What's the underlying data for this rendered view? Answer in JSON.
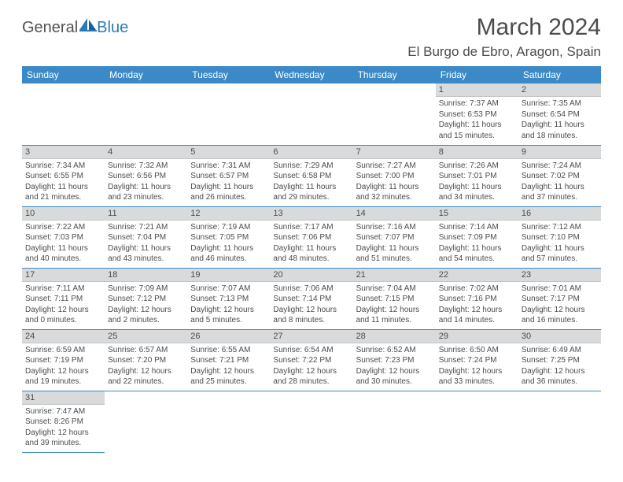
{
  "logo": {
    "text1": "General",
    "text2": "Blue"
  },
  "title": "March 2024",
  "location": "El Burgo de Ebro, Aragon, Spain",
  "header_bg": "#3b89c6",
  "day_headers": [
    "Sunday",
    "Monday",
    "Tuesday",
    "Wednesday",
    "Thursday",
    "Friday",
    "Saturday"
  ],
  "weeks": [
    [
      null,
      null,
      null,
      null,
      null,
      {
        "n": "1",
        "sunrise": "Sunrise: 7:37 AM",
        "sunset": "Sunset: 6:53 PM",
        "day1": "Daylight: 11 hours",
        "day2": "and 15 minutes."
      },
      {
        "n": "2",
        "sunrise": "Sunrise: 7:35 AM",
        "sunset": "Sunset: 6:54 PM",
        "day1": "Daylight: 11 hours",
        "day2": "and 18 minutes."
      }
    ],
    [
      {
        "n": "3",
        "sunrise": "Sunrise: 7:34 AM",
        "sunset": "Sunset: 6:55 PM",
        "day1": "Daylight: 11 hours",
        "day2": "and 21 minutes."
      },
      {
        "n": "4",
        "sunrise": "Sunrise: 7:32 AM",
        "sunset": "Sunset: 6:56 PM",
        "day1": "Daylight: 11 hours",
        "day2": "and 23 minutes."
      },
      {
        "n": "5",
        "sunrise": "Sunrise: 7:31 AM",
        "sunset": "Sunset: 6:57 PM",
        "day1": "Daylight: 11 hours",
        "day2": "and 26 minutes."
      },
      {
        "n": "6",
        "sunrise": "Sunrise: 7:29 AM",
        "sunset": "Sunset: 6:58 PM",
        "day1": "Daylight: 11 hours",
        "day2": "and 29 minutes."
      },
      {
        "n": "7",
        "sunrise": "Sunrise: 7:27 AM",
        "sunset": "Sunset: 7:00 PM",
        "day1": "Daylight: 11 hours",
        "day2": "and 32 minutes."
      },
      {
        "n": "8",
        "sunrise": "Sunrise: 7:26 AM",
        "sunset": "Sunset: 7:01 PM",
        "day1": "Daylight: 11 hours",
        "day2": "and 34 minutes."
      },
      {
        "n": "9",
        "sunrise": "Sunrise: 7:24 AM",
        "sunset": "Sunset: 7:02 PM",
        "day1": "Daylight: 11 hours",
        "day2": "and 37 minutes."
      }
    ],
    [
      {
        "n": "10",
        "sunrise": "Sunrise: 7:22 AM",
        "sunset": "Sunset: 7:03 PM",
        "day1": "Daylight: 11 hours",
        "day2": "and 40 minutes."
      },
      {
        "n": "11",
        "sunrise": "Sunrise: 7:21 AM",
        "sunset": "Sunset: 7:04 PM",
        "day1": "Daylight: 11 hours",
        "day2": "and 43 minutes."
      },
      {
        "n": "12",
        "sunrise": "Sunrise: 7:19 AM",
        "sunset": "Sunset: 7:05 PM",
        "day1": "Daylight: 11 hours",
        "day2": "and 46 minutes."
      },
      {
        "n": "13",
        "sunrise": "Sunrise: 7:17 AM",
        "sunset": "Sunset: 7:06 PM",
        "day1": "Daylight: 11 hours",
        "day2": "and 48 minutes."
      },
      {
        "n": "14",
        "sunrise": "Sunrise: 7:16 AM",
        "sunset": "Sunset: 7:07 PM",
        "day1": "Daylight: 11 hours",
        "day2": "and 51 minutes."
      },
      {
        "n": "15",
        "sunrise": "Sunrise: 7:14 AM",
        "sunset": "Sunset: 7:09 PM",
        "day1": "Daylight: 11 hours",
        "day2": "and 54 minutes."
      },
      {
        "n": "16",
        "sunrise": "Sunrise: 7:12 AM",
        "sunset": "Sunset: 7:10 PM",
        "day1": "Daylight: 11 hours",
        "day2": "and 57 minutes."
      }
    ],
    [
      {
        "n": "17",
        "sunrise": "Sunrise: 7:11 AM",
        "sunset": "Sunset: 7:11 PM",
        "day1": "Daylight: 12 hours",
        "day2": "and 0 minutes."
      },
      {
        "n": "18",
        "sunrise": "Sunrise: 7:09 AM",
        "sunset": "Sunset: 7:12 PM",
        "day1": "Daylight: 12 hours",
        "day2": "and 2 minutes."
      },
      {
        "n": "19",
        "sunrise": "Sunrise: 7:07 AM",
        "sunset": "Sunset: 7:13 PM",
        "day1": "Daylight: 12 hours",
        "day2": "and 5 minutes."
      },
      {
        "n": "20",
        "sunrise": "Sunrise: 7:06 AM",
        "sunset": "Sunset: 7:14 PM",
        "day1": "Daylight: 12 hours",
        "day2": "and 8 minutes."
      },
      {
        "n": "21",
        "sunrise": "Sunrise: 7:04 AM",
        "sunset": "Sunset: 7:15 PM",
        "day1": "Daylight: 12 hours",
        "day2": "and 11 minutes."
      },
      {
        "n": "22",
        "sunrise": "Sunrise: 7:02 AM",
        "sunset": "Sunset: 7:16 PM",
        "day1": "Daylight: 12 hours",
        "day2": "and 14 minutes."
      },
      {
        "n": "23",
        "sunrise": "Sunrise: 7:01 AM",
        "sunset": "Sunset: 7:17 PM",
        "day1": "Daylight: 12 hours",
        "day2": "and 16 minutes."
      }
    ],
    [
      {
        "n": "24",
        "sunrise": "Sunrise: 6:59 AM",
        "sunset": "Sunset: 7:19 PM",
        "day1": "Daylight: 12 hours",
        "day2": "and 19 minutes."
      },
      {
        "n": "25",
        "sunrise": "Sunrise: 6:57 AM",
        "sunset": "Sunset: 7:20 PM",
        "day1": "Daylight: 12 hours",
        "day2": "and 22 minutes."
      },
      {
        "n": "26",
        "sunrise": "Sunrise: 6:55 AM",
        "sunset": "Sunset: 7:21 PM",
        "day1": "Daylight: 12 hours",
        "day2": "and 25 minutes."
      },
      {
        "n": "27",
        "sunrise": "Sunrise: 6:54 AM",
        "sunset": "Sunset: 7:22 PM",
        "day1": "Daylight: 12 hours",
        "day2": "and 28 minutes."
      },
      {
        "n": "28",
        "sunrise": "Sunrise: 6:52 AM",
        "sunset": "Sunset: 7:23 PM",
        "day1": "Daylight: 12 hours",
        "day2": "and 30 minutes."
      },
      {
        "n": "29",
        "sunrise": "Sunrise: 6:50 AM",
        "sunset": "Sunset: 7:24 PM",
        "day1": "Daylight: 12 hours",
        "day2": "and 33 minutes."
      },
      {
        "n": "30",
        "sunrise": "Sunrise: 6:49 AM",
        "sunset": "Sunset: 7:25 PM",
        "day1": "Daylight: 12 hours",
        "day2": "and 36 minutes."
      }
    ],
    [
      {
        "n": "31",
        "sunrise": "Sunrise: 7:47 AM",
        "sunset": "Sunset: 8:26 PM",
        "day1": "Daylight: 12 hours",
        "day2": "and 39 minutes."
      },
      null,
      null,
      null,
      null,
      null,
      null
    ]
  ]
}
